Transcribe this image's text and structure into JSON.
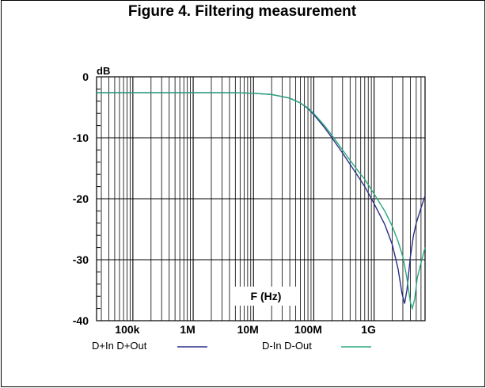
{
  "figure": {
    "title": "Figure 4. Filtering measurement"
  },
  "chart_data": {
    "type": "line",
    "xscale": "log",
    "xlim": [
      25000,
      7000000000
    ],
    "ylim": [
      -40,
      0
    ],
    "ylabel": "dB",
    "xlabel": "F (Hz)",
    "grid": true,
    "legend_position": "bottom",
    "y_ticks": [
      {
        "value": 0,
        "label": "0"
      },
      {
        "value": -10,
        "label": "-10"
      },
      {
        "value": -20,
        "label": "-20"
      },
      {
        "value": -30,
        "label": "-30"
      },
      {
        "value": -40,
        "label": "-40"
      }
    ],
    "x_ticks": [
      {
        "value": 100000,
        "label": "100k"
      },
      {
        "value": 1000000,
        "label": "1M"
      },
      {
        "value": 10000000,
        "label": "10M"
      },
      {
        "value": 100000000,
        "label": "100M"
      },
      {
        "value": 1000000000,
        "label": "1G"
      }
    ],
    "series": [
      {
        "name": "D+In D+Out",
        "color": "#2b2f86",
        "points": [
          [
            25000,
            -2.6
          ],
          [
            1000000,
            -2.6
          ],
          [
            5000000,
            -2.6
          ],
          [
            10000000,
            -2.7
          ],
          [
            20000000,
            -2.9
          ],
          [
            40000000,
            -3.5
          ],
          [
            60000000,
            -4.3
          ],
          [
            80000000,
            -5.2
          ],
          [
            100000000,
            -6.2
          ],
          [
            150000000,
            -8.3
          ],
          [
            200000000,
            -10.0
          ],
          [
            300000000,
            -12.5
          ],
          [
            500000000,
            -15.8
          ],
          [
            700000000,
            -18.0
          ],
          [
            1000000000,
            -20.8
          ],
          [
            1500000000,
            -24.2
          ],
          [
            2000000000,
            -27.5
          ],
          [
            2500000000,
            -31.5
          ],
          [
            2900000000,
            -35.5
          ],
          [
            3200000000,
            -37.2
          ],
          [
            3500000000,
            -35.0
          ],
          [
            4000000000,
            -29.5
          ],
          [
            4500000000,
            -26.0
          ],
          [
            5000000000,
            -24.0
          ],
          [
            6000000000,
            -21.5
          ],
          [
            7000000000,
            -19.5
          ]
        ]
      },
      {
        "name": "D-In D-Out",
        "color": "#2aa87e",
        "points": [
          [
            25000,
            -2.6
          ],
          [
            1000000,
            -2.6
          ],
          [
            5000000,
            -2.6
          ],
          [
            10000000,
            -2.7
          ],
          [
            20000000,
            -2.9
          ],
          [
            40000000,
            -3.5
          ],
          [
            60000000,
            -4.3
          ],
          [
            80000000,
            -5.1
          ],
          [
            100000000,
            -6.0
          ],
          [
            150000000,
            -8.0
          ],
          [
            200000000,
            -9.6
          ],
          [
            300000000,
            -12.0
          ],
          [
            500000000,
            -15.0
          ],
          [
            700000000,
            -16.8
          ],
          [
            1000000000,
            -19.2
          ],
          [
            1500000000,
            -22.0
          ],
          [
            2000000000,
            -24.5
          ],
          [
            2500000000,
            -27.0
          ],
          [
            3000000000,
            -29.5
          ],
          [
            3500000000,
            -33.0
          ],
          [
            4000000000,
            -37.0
          ],
          [
            4300000000,
            -38.0
          ],
          [
            4700000000,
            -36.5
          ],
          [
            5200000000,
            -33.0
          ],
          [
            6000000000,
            -30.5
          ],
          [
            7000000000,
            -28.0
          ]
        ]
      }
    ]
  }
}
